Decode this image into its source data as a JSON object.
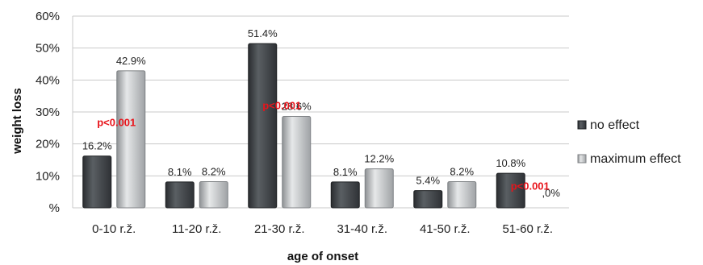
{
  "chart_data": {
    "type": "bar",
    "xlabel": "age of onset",
    "ylabel": "weight loss",
    "ylim": [
      0,
      60
    ],
    "yticks": [
      "%",
      "10%",
      "20%",
      "30%",
      "40%",
      "50%",
      "60%"
    ],
    "grid": true,
    "legend_position": "right",
    "categories": [
      "0-10 r.ž.",
      "11-20 r.ž.",
      "21-30 r.ž.",
      "31-40 r.ž.",
      "41-50 r.ž.",
      "51-60 r.ž."
    ],
    "series": [
      {
        "name": "no effect",
        "color": "#3d4145",
        "values": [
          16.2,
          8.1,
          51.4,
          8.1,
          5.4,
          10.8
        ],
        "labels": [
          "16.2%",
          "8.1%",
          "51.4%",
          "8.1%",
          "5.4%",
          "10.8%"
        ]
      },
      {
        "name": "maximum effect",
        "color": "#b9bcbe",
        "values": [
          42.9,
          8.2,
          28.6,
          12.2,
          8.2,
          0
        ],
        "labels": [
          "42.9%",
          "8.2%",
          "28.6%",
          "12.2%",
          "8.2%",
          ",0%"
        ]
      }
    ],
    "annotations": [
      {
        "text": "p<0.001",
        "category": "0-10 r.ž.",
        "color": "#e8141b"
      },
      {
        "text": "p<0.001",
        "category": "21-30 r.ž.",
        "color": "#e8141b"
      },
      {
        "text": "p<0.001",
        "category": "51-60 r.ž.",
        "color": "#e8141b"
      }
    ]
  }
}
